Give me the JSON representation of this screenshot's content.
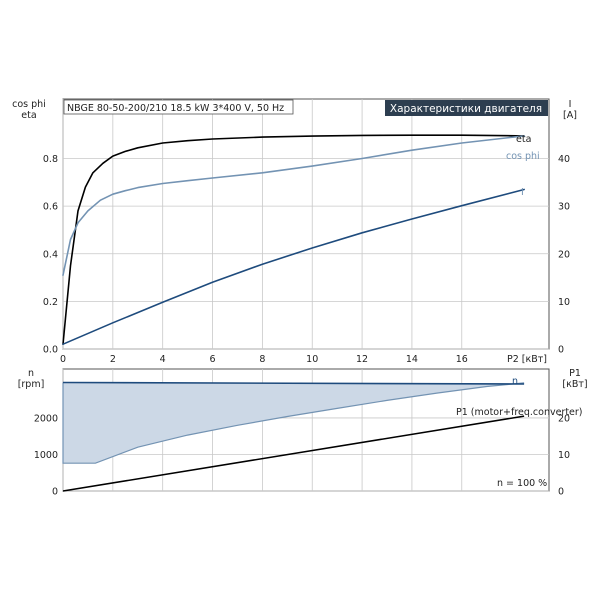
{
  "chart_data": [
    {
      "type": "line",
      "title": "Характеристики двигателя",
      "subtitle": "NBGE 80-50-200/210   18.5 kW   3*400 V, 50 Hz",
      "xlabel": "P2 [кВт]",
      "ylabel_left": [
        "cos phi",
        "eta"
      ],
      "ylabel_right": [
        "I",
        "[A]"
      ],
      "xlim": [
        0,
        19.5
      ],
      "ylim_left": [
        0,
        1.05
      ],
      "ylim_right": [
        0,
        52.5
      ],
      "x_ticks": [
        "0",
        "2",
        "4",
        "6",
        "8",
        "10",
        "12",
        "14",
        "16"
      ],
      "y_ticks_left": [
        "0.0",
        "0.2",
        "0.4",
        "0.6",
        "0.8"
      ],
      "y_ticks_right": [
        "0",
        "10",
        "20",
        "30",
        "40"
      ],
      "grid": true,
      "series": [
        {
          "name": "eta",
          "axis": "left",
          "color": "#000000",
          "x": [
            0,
            0.3,
            0.6,
            0.9,
            1.2,
            1.6,
            2,
            2.5,
            3,
            4,
            5,
            6,
            8,
            10,
            12,
            14,
            16,
            18.5
          ],
          "y": [
            0.02,
            0.35,
            0.58,
            0.68,
            0.74,
            0.78,
            0.81,
            0.83,
            0.845,
            0.865,
            0.875,
            0.882,
            0.89,
            0.894,
            0.897,
            0.898,
            0.898,
            0.895
          ]
        },
        {
          "name": "cos phi",
          "axis": "left",
          "color": "#7393b3",
          "x": [
            0,
            0.3,
            0.6,
            1,
            1.5,
            2,
            2.5,
            3,
            4,
            5,
            6,
            8,
            10,
            12,
            14,
            16,
            18.5
          ],
          "y": [
            0.31,
            0.46,
            0.53,
            0.58,
            0.625,
            0.65,
            0.665,
            0.678,
            0.695,
            0.707,
            0.718,
            0.74,
            0.768,
            0.8,
            0.835,
            0.865,
            0.895
          ]
        },
        {
          "name": "I",
          "axis": "right",
          "color": "#1e4b7d",
          "x": [
            0,
            2,
            4,
            6,
            8,
            10,
            12,
            14,
            16,
            18.5
          ],
          "y": [
            1,
            5.5,
            9.8,
            14,
            17.8,
            21.2,
            24.4,
            27.3,
            30.1,
            33.5
          ]
        }
      ]
    },
    {
      "type": "area",
      "ylabel_left": [
        "n",
        "[rpm]"
      ],
      "ylabel_right": [
        "P1",
        "[кВт]"
      ],
      "xlim": [
        0,
        19.5
      ],
      "ylim_left": [
        0,
        3340
      ],
      "ylim_right": [
        0,
        33.4
      ],
      "y_ticks_left": [
        "0",
        "1000",
        "2000"
      ],
      "y_ticks_right": [
        "0",
        "10",
        "20"
      ],
      "grid": true,
      "annotation": "n = 100 %",
      "series": [
        {
          "name": "n",
          "axis": "left",
          "color": "#1e4b7d",
          "x": [
            0,
            18.5
          ],
          "y": [
            2970,
            2930
          ]
        },
        {
          "name": "n (lower bound)",
          "axis": "left",
          "color": "#7393b3",
          "fill": "#ccd8e6",
          "x": [
            0,
            1.3,
            3,
            5,
            7,
            9,
            11,
            13,
            15,
            17,
            18.5
          ],
          "y": [
            760,
            760,
            1200,
            1530,
            1800,
            2040,
            2260,
            2480,
            2680,
            2860,
            2960
          ]
        },
        {
          "name": "P1 (motor+freq.converter)",
          "axis": "right",
          "color": "#000000",
          "x": [
            0,
            18.5
          ],
          "y": [
            0,
            20.5
          ]
        }
      ]
    }
  ]
}
